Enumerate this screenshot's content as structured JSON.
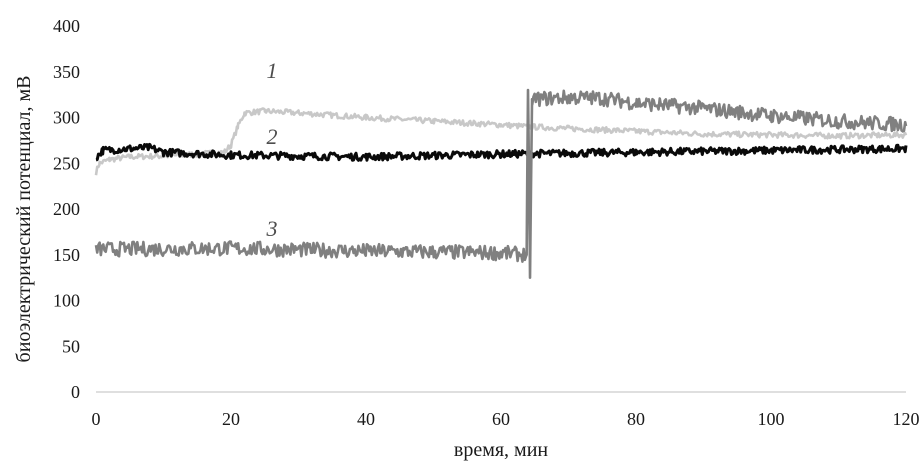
{
  "chart_data": {
    "type": "line",
    "title": "",
    "xlabel": "время, мин",
    "ylabel": "биоэлектрический потенциал, мВ",
    "xlim": [
      0,
      120
    ],
    "ylim": [
      0,
      400
    ],
    "xticks": [
      0,
      20,
      40,
      60,
      80,
      100,
      120
    ],
    "yticks": [
      0,
      50,
      100,
      150,
      200,
      250,
      300,
      350,
      400
    ],
    "grid": false,
    "legend": "none",
    "series": [
      {
        "label": "1",
        "color": "#c8c8c8",
        "noise": 3,
        "points": [
          [
            0,
            240
          ],
          [
            0.5,
            250
          ],
          [
            2,
            254
          ],
          [
            5,
            257
          ],
          [
            10,
            258
          ],
          [
            15,
            260
          ],
          [
            19,
            262
          ],
          [
            20,
            270
          ],
          [
            21,
            290
          ],
          [
            22,
            305
          ],
          [
            25,
            307
          ],
          [
            30,
            305
          ],
          [
            40,
            300
          ],
          [
            50,
            296
          ],
          [
            60,
            292
          ],
          [
            64,
            290
          ],
          [
            70,
            288
          ],
          [
            80,
            285
          ],
          [
            90,
            282
          ],
          [
            100,
            281
          ],
          [
            110,
            280
          ],
          [
            120,
            281
          ]
        ]
      },
      {
        "label": "2",
        "color": "#0a0a0a",
        "noise": 4,
        "points": [
          [
            0,
            256
          ],
          [
            1,
            264
          ],
          [
            5,
            266
          ],
          [
            8,
            267
          ],
          [
            10,
            262
          ],
          [
            20,
            259
          ],
          [
            40,
            257
          ],
          [
            60,
            260
          ],
          [
            80,
            262
          ],
          [
            100,
            264
          ],
          [
            120,
            266
          ]
        ]
      },
      {
        "label": "3",
        "color": "#808080",
        "noise": 8,
        "points": [
          [
            0,
            156
          ],
          [
            20,
            157
          ],
          [
            40,
            154
          ],
          [
            60,
            152
          ],
          [
            63.8,
            150
          ],
          [
            64,
            330
          ],
          [
            64.3,
            125
          ],
          [
            64.6,
            320
          ],
          [
            70,
            322
          ],
          [
            75,
            321
          ],
          [
            80,
            316
          ],
          [
            90,
            310
          ],
          [
            100,
            302
          ],
          [
            110,
            296
          ],
          [
            120,
            292
          ]
        ]
      }
    ]
  }
}
